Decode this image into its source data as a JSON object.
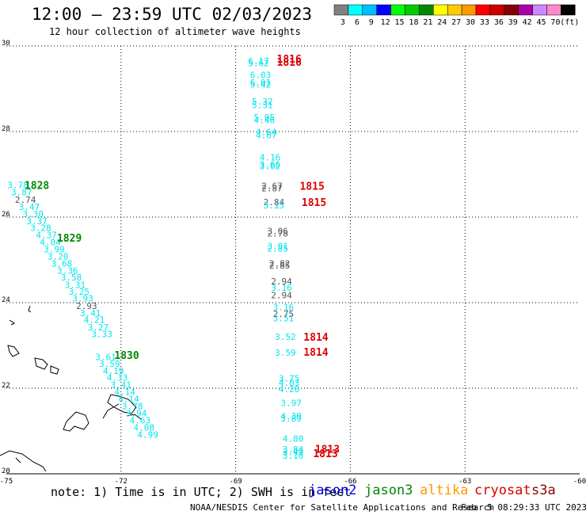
{
  "header": {
    "title": "12:00 – 23:59 UTC 02/03/2023",
    "subtitle": "12 hour collection of altimeter wave heights"
  },
  "colorbar": {
    "colors": [
      "#808080",
      "#00ffff",
      "#00bfff",
      "#0000ff",
      "#00ff00",
      "#00cc00",
      "#008800",
      "#ffff00",
      "#ffcc00",
      "#ff9900",
      "#ff0000",
      "#cc0000",
      "#880000",
      "#aa00aa",
      "#cc88ff",
      "#ff88cc",
      "#000000"
    ],
    "labels": [
      "3",
      "6",
      "9",
      "12",
      "15",
      "18",
      "21",
      "24",
      "27",
      "30",
      "33",
      "36",
      "39",
      "42",
      "45",
      "70",
      "(ft)"
    ]
  },
  "footer": {
    "note": "note: 1) Time is in UTC; 2) SWH is in feet",
    "missions": [
      {
        "name": "jason2",
        "color": "#0000ee"
      },
      {
        "name": "jason3",
        "color": "#008800"
      },
      {
        "name": "altika",
        "color": "#ff9900"
      },
      {
        "name": "cryosat",
        "color": "#dd0000"
      },
      {
        "name": "s3a",
        "color": "#880000"
      }
    ],
    "credit": "NOAA/NESDIS Center for Satellite Applications and Research",
    "issued": "Feb  5 08:29:33 UTC 2023"
  },
  "chart_data": {
    "type": "scatter",
    "xlabel": "",
    "ylabel": "",
    "xlim": [
      -75,
      -60
    ],
    "ylim": [
      20,
      30
    ],
    "xticks": [
      "-75",
      "-72",
      "-69",
      "-66",
      "-63",
      "-60"
    ],
    "yticks": [
      "20",
      "22",
      "24",
      "26",
      "28",
      "30"
    ],
    "grid": true,
    "tracks": [
      {
        "name": "west",
        "color": "#00e5ee",
        "points": [
          {
            "x": -74.7,
            "y": 26.75,
            "v": "3.78"
          },
          {
            "x": -74.6,
            "y": 26.58,
            "v": "3.87"
          },
          {
            "x": -74.5,
            "y": 26.41,
            "v": "2.74",
            "c": "#555555"
          },
          {
            "x": -74.4,
            "y": 26.24,
            "v": "3.47"
          },
          {
            "x": -74.3,
            "y": 26.07,
            "v": "3.30"
          },
          {
            "x": -74.2,
            "y": 25.91,
            "v": "3.37"
          },
          {
            "x": -74.1,
            "y": 25.75,
            "v": "3.28"
          },
          {
            "x": -73.95,
            "y": 25.58,
            "v": "4.37"
          },
          {
            "x": -73.85,
            "y": 25.42,
            "v": "4.04"
          },
          {
            "x": -73.75,
            "y": 25.25,
            "v": "3.99"
          },
          {
            "x": -73.65,
            "y": 25.08,
            "v": "3.20"
          },
          {
            "x": -73.55,
            "y": 24.92,
            "v": "3.68"
          },
          {
            "x": -73.4,
            "y": 24.75,
            "v": "3.36"
          },
          {
            "x": -73.3,
            "y": 24.59,
            "v": "3.58"
          },
          {
            "x": -73.2,
            "y": 24.42,
            "v": "3.31"
          },
          {
            "x": -73.1,
            "y": 24.26,
            "v": "3.25"
          },
          {
            "x": -73.0,
            "y": 24.1,
            "v": "3.93"
          },
          {
            "x": -72.9,
            "y": 23.93,
            "v": "2.93",
            "c": "#555555"
          },
          {
            "x": -72.8,
            "y": 23.76,
            "v": "3.41"
          },
          {
            "x": -72.7,
            "y": 23.6,
            "v": "4.21"
          },
          {
            "x": -72.6,
            "y": 23.43,
            "v": "3.27"
          },
          {
            "x": -72.5,
            "y": 23.27,
            "v": "3.33"
          },
          {
            "x": -72.4,
            "y": 22.73,
            "v": "3.61"
          },
          {
            "x": -72.3,
            "y": 22.57,
            "v": "3.59"
          },
          {
            "x": -72.2,
            "y": 22.41,
            "v": "4.19"
          },
          {
            "x": -72.1,
            "y": 22.25,
            "v": "4.33"
          },
          {
            "x": -72.0,
            "y": 22.08,
            "v": "3.41"
          },
          {
            "x": -71.9,
            "y": 21.92,
            "v": "4.14"
          },
          {
            "x": -71.8,
            "y": 21.75,
            "v": "4.14"
          },
          {
            "x": -71.7,
            "y": 21.58,
            "v": "3.78"
          },
          {
            "x": -71.6,
            "y": 21.42,
            "v": "3.94"
          },
          {
            "x": -71.5,
            "y": 21.25,
            "v": "4.63"
          },
          {
            "x": -71.4,
            "y": 21.08,
            "v": "4.08"
          },
          {
            "x": -71.3,
            "y": 20.92,
            "v": "4.99"
          }
        ]
      },
      {
        "name": "east",
        "color": "#00e5ee",
        "points": [
          {
            "x": -68.4,
            "y": 29.65,
            "v": "6.17"
          },
          {
            "x": -68.4,
            "y": 29.6,
            "v": "5.62"
          },
          {
            "x": -68.35,
            "y": 29.32,
            "v": "6.03"
          },
          {
            "x": -68.35,
            "y": 29.15,
            "v": "6.01"
          },
          {
            "x": -68.35,
            "y": 29.1,
            "v": "5.42"
          },
          {
            "x": -68.3,
            "y": 28.7,
            "v": "5.32"
          },
          {
            "x": -68.3,
            "y": 28.62,
            "v": "5.31"
          },
          {
            "x": -68.25,
            "y": 28.33,
            "v": "5.05"
          },
          {
            "x": -68.25,
            "y": 28.27,
            "v": "4.46"
          },
          {
            "x": -68.2,
            "y": 27.99,
            "v": "4.64"
          },
          {
            "x": -68.2,
            "y": 27.92,
            "v": "4.67"
          },
          {
            "x": -68.1,
            "y": 27.4,
            "v": "4.16"
          },
          {
            "x": -68.1,
            "y": 27.23,
            "v": "3.66"
          },
          {
            "x": -68.1,
            "y": 27.19,
            "v": "3.62"
          },
          {
            "x": -68.05,
            "y": 26.73,
            "v": "2.67",
            "c": "#555555"
          },
          {
            "x": -68.05,
            "y": 26.68,
            "v": "2.87",
            "c": "#555555"
          },
          {
            "x": -68.0,
            "y": 26.35,
            "v": "2.84",
            "c": "#555555"
          },
          {
            "x": -68.0,
            "y": 26.28,
            "v": "3.15"
          },
          {
            "x": -67.9,
            "y": 25.68,
            "v": "3.06",
            "c": "#555555"
          },
          {
            "x": -67.9,
            "y": 25.62,
            "v": "2.78",
            "c": "#555555"
          },
          {
            "x": -67.9,
            "y": 25.32,
            "v": "3.01"
          },
          {
            "x": -67.9,
            "y": 25.27,
            "v": "2.85"
          },
          {
            "x": -67.85,
            "y": 24.92,
            "v": "2.82",
            "c": "#555555"
          },
          {
            "x": -67.85,
            "y": 24.87,
            "v": "2.85",
            "c": "#555555"
          },
          {
            "x": -67.8,
            "y": 24.5,
            "v": "2.94",
            "c": "#555555"
          },
          {
            "x": -67.8,
            "y": 24.35,
            "v": "3.16"
          },
          {
            "x": -67.8,
            "y": 24.18,
            "v": "2.94",
            "c": "#555555"
          },
          {
            "x": -67.75,
            "y": 23.9,
            "v": "3.16"
          },
          {
            "x": -67.75,
            "y": 23.74,
            "v": "2.75",
            "c": "#555555"
          },
          {
            "x": -67.75,
            "y": 23.64,
            "v": "3.51"
          },
          {
            "x": -67.7,
            "y": 23.2,
            "v": "3.52"
          },
          {
            "x": -67.7,
            "y": 22.83,
            "v": "3.59"
          },
          {
            "x": -67.6,
            "y": 22.23,
            "v": "3.75"
          },
          {
            "x": -67.6,
            "y": 22.13,
            "v": "4.03"
          },
          {
            "x": -67.6,
            "y": 21.98,
            "v": "4.20"
          },
          {
            "x": -67.55,
            "y": 21.66,
            "v": "3.97"
          },
          {
            "x": -67.55,
            "y": 21.35,
            "v": "4.39"
          },
          {
            "x": -67.55,
            "y": 21.3,
            "v": "3.89"
          },
          {
            "x": -67.5,
            "y": 20.82,
            "v": "4.80"
          },
          {
            "x": -67.5,
            "y": 20.57,
            "v": "3.84"
          },
          {
            "x": -67.5,
            "y": 20.52,
            "v": "3.49"
          },
          {
            "x": -67.5,
            "y": 20.43,
            "v": "3.10"
          }
        ]
      }
    ],
    "pass_times": [
      {
        "label": "1816",
        "x": -67.6,
        "y": 29.7,
        "color": "#dd0000"
      },
      {
        "label": "1816",
        "x": -67.6,
        "y": 29.63,
        "color": "#dd0000"
      },
      {
        "label": "1828",
        "x": -74.2,
        "y": 26.75,
        "color": "#008800"
      },
      {
        "label": "1815",
        "x": -67.0,
        "y": 26.73,
        "color": "#dd0000"
      },
      {
        "label": "1815",
        "x": -66.95,
        "y": 26.35,
        "color": "#dd0000"
      },
      {
        "label": "1829",
        "x": -73.35,
        "y": 25.52,
        "color": "#008800"
      },
      {
        "label": "1830",
        "x": -71.85,
        "y": 22.78,
        "color": "#008800"
      },
      {
        "label": "1814",
        "x": -66.9,
        "y": 23.2,
        "color": "#dd0000"
      },
      {
        "label": "1814",
        "x": -66.9,
        "y": 22.85,
        "color": "#dd0000"
      },
      {
        "label": "1813",
        "x": -66.6,
        "y": 20.58,
        "color": "#dd0000"
      },
      {
        "label": "1813",
        "x": -66.65,
        "y": 20.48,
        "color": "#dd0000"
      }
    ]
  }
}
